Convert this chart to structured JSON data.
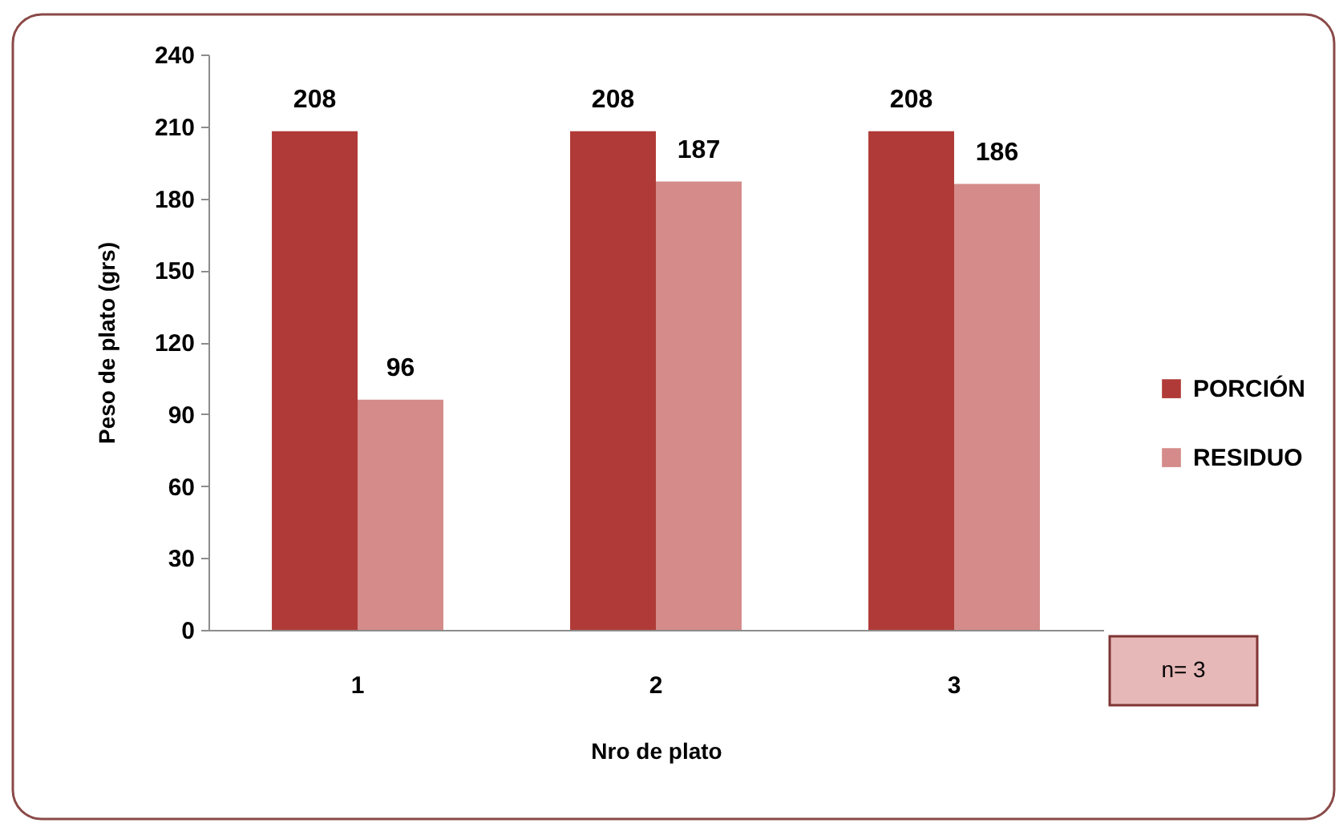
{
  "chart_data": {
    "type": "bar",
    "xlabel": "Nro de plato",
    "ylabel": "Peso de plato (grs)",
    "categories": [
      "1",
      "2",
      "3"
    ],
    "series": [
      {
        "name": "PORCIÓN",
        "color": "#b03a37",
        "values": [
          208,
          208,
          208
        ]
      },
      {
        "name": "RESIDUO",
        "color": "#d48b89",
        "values": [
          96,
          187,
          186
        ]
      }
    ],
    "ylim": [
      0,
      240
    ],
    "yticks": [
      0,
      30,
      60,
      90,
      120,
      150,
      180,
      210,
      240
    ],
    "grid": false,
    "legend": "right",
    "data_labels": true,
    "annotations": [
      "n= 3"
    ]
  }
}
